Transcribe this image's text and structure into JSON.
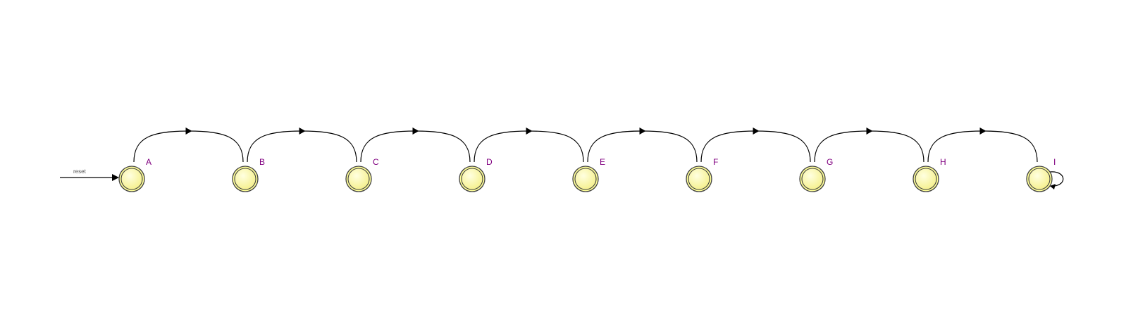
{
  "diagram": {
    "initial_label": "reset",
    "states": [
      {
        "id": "A"
      },
      {
        "id": "B"
      },
      {
        "id": "C"
      },
      {
        "id": "D"
      },
      {
        "id": "E"
      },
      {
        "id": "F"
      },
      {
        "id": "G"
      },
      {
        "id": "H"
      },
      {
        "id": "I"
      }
    ],
    "transitions": [
      {
        "from": "A",
        "to": "B"
      },
      {
        "from": "B",
        "to": "C"
      },
      {
        "from": "C",
        "to": "D"
      },
      {
        "from": "D",
        "to": "E"
      },
      {
        "from": "E",
        "to": "F"
      },
      {
        "from": "F",
        "to": "G"
      },
      {
        "from": "G",
        "to": "H"
      },
      {
        "from": "H",
        "to": "I"
      },
      {
        "from": "I",
        "to": "I"
      }
    ],
    "colors": {
      "state_fill": "#ffff99",
      "state_stroke": "#404040",
      "label": "#800080",
      "edge": "#000000",
      "reset_label": "#555555"
    }
  }
}
